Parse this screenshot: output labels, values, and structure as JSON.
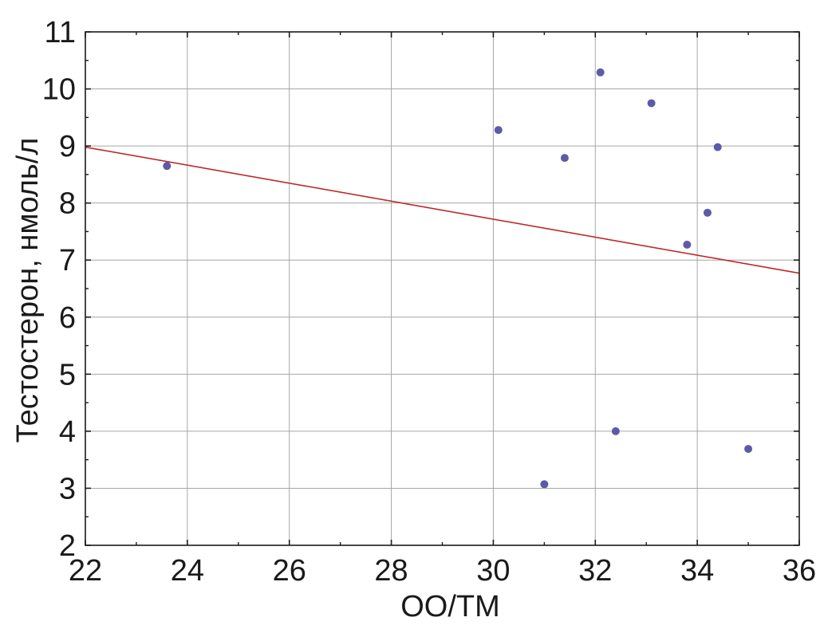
{
  "chart_data": {
    "type": "scatter",
    "title": "",
    "xlabel": "ОО/ТМ",
    "ylabel": "Тестостерон, нмоль/л",
    "xlim": [
      22,
      36
    ],
    "ylim": [
      2,
      11
    ],
    "x_ticks": [
      22,
      24,
      26,
      28,
      30,
      32,
      34,
      36
    ],
    "y_ticks": [
      2,
      3,
      4,
      5,
      6,
      7,
      8,
      9,
      10,
      11
    ],
    "x_tick_labels": [
      "22",
      "24",
      "26",
      "28",
      "30",
      "32",
      "34",
      "36"
    ],
    "y_tick_labels": [
      "2",
      "3",
      "4",
      "5",
      "6",
      "7",
      "8",
      "9",
      "10",
      "11"
    ],
    "grid": true,
    "points": [
      {
        "x": 23.6,
        "y": 8.65
      },
      {
        "x": 30.1,
        "y": 9.28
      },
      {
        "x": 31.0,
        "y": 3.07
      },
      {
        "x": 31.4,
        "y": 8.79
      },
      {
        "x": 32.1,
        "y": 10.29
      },
      {
        "x": 32.4,
        "y": 4.0
      },
      {
        "x": 33.1,
        "y": 9.75
      },
      {
        "x": 33.8,
        "y": 7.27
      },
      {
        "x": 34.2,
        "y": 7.83
      },
      {
        "x": 34.4,
        "y": 8.98
      },
      {
        "x": 35.0,
        "y": 3.69
      }
    ],
    "trend_line": {
      "x": [
        22,
        36
      ],
      "y": [
        8.98,
        6.77
      ]
    },
    "colors": {
      "points": "#5e5aa8",
      "trend": "#c0282d",
      "grid": "#a6a6a6",
      "axis": "#1a1a1a"
    }
  }
}
